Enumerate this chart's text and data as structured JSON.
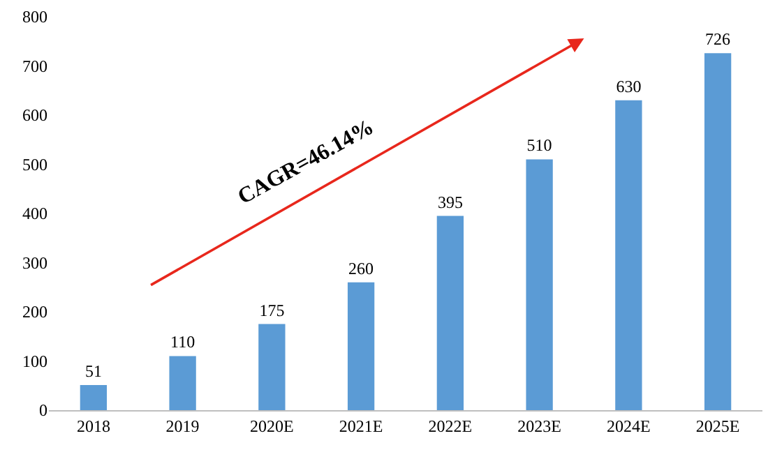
{
  "chart_data": {
    "type": "bar",
    "categories": [
      "2018",
      "2019",
      "2020E",
      "2021E",
      "2022E",
      "2023E",
      "2024E",
      "2025E"
    ],
    "values": [
      51,
      110,
      175,
      260,
      395,
      510,
      630,
      726
    ],
    "color": "#5b9bd5",
    "ylim": [
      0,
      800
    ],
    "yticks": [
      0,
      100,
      200,
      300,
      400,
      500,
      600,
      700,
      800
    ],
    "data_labels": true,
    "annotations": [
      "CAGR=46.14%"
    ]
  }
}
